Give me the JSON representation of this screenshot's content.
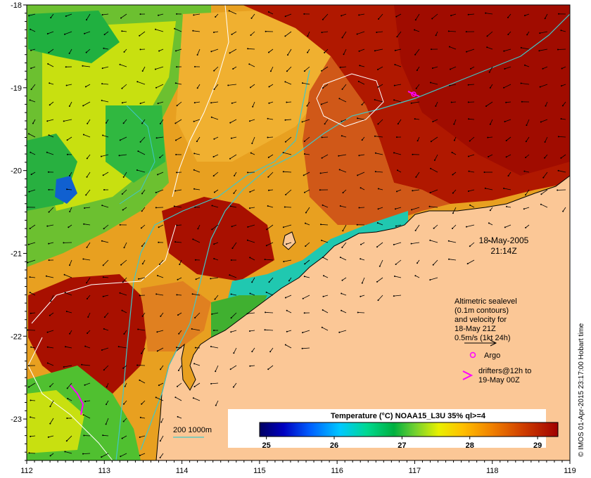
{
  "map": {
    "lon_range": [
      112,
      119
    ],
    "lat_range": [
      -23.5,
      -18
    ],
    "lon_ticks": [
      "112",
      "113",
      "114",
      "115",
      "116",
      "117",
      "118",
      "119"
    ],
    "lat_ticks": [
      "-18",
      "-19",
      "-20",
      "-21",
      "-22",
      "-23"
    ],
    "date": "18-May-2005",
    "time": "21:14Z",
    "legend_text": [
      "Altimetric sealevel",
      "(0.1m contours)",
      "and velocity for",
      "18-May 21Z",
      "0.5m/s (1kt 24h)"
    ],
    "argo_label": "Argo",
    "drifter_text": [
      "drifters@12h to",
      "19-May 00Z"
    ],
    "isobath_label": "200  1000m",
    "colorbar_title": "Temperature (°C) NOAA15_L3U 35% ql>=4",
    "colorbar_range": [
      24.9,
      29.3
    ],
    "colorbar_ticks": [
      "25",
      "26",
      "27",
      "28",
      "29"
    ],
    "credit": "© IMOS 01-Apr-2015 23:17:00 Hobart time",
    "colors": {
      "land": "#fbc796",
      "isobath": "#40c8c8",
      "contour": "#ffffff",
      "argo": "#ff00ff",
      "drifter": "#ff00ff"
    }
  }
}
